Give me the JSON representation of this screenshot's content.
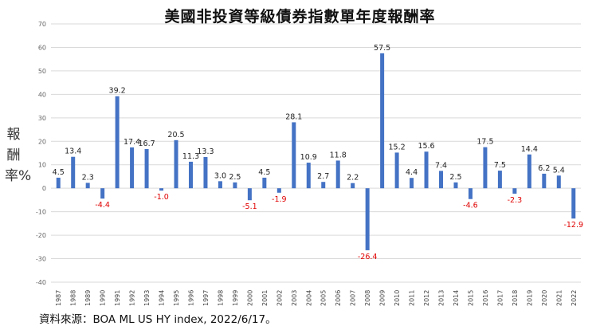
{
  "title": "美國非投資等級債券指數單年度報酬率",
  "ylabel": "報酬率%",
  "source": "資料來源：BOA ML US HY  index, 2022/6/17。",
  "colors": {
    "bar": "#4472C4",
    "positive_label": "#222222",
    "negative_label": "#e00000",
    "grid": "#d9d9d9"
  },
  "chart_data": {
    "type": "bar",
    "title": "美國非投資等級債券指數單年度報酬率",
    "xlabel": "",
    "ylabel": "報酬率%",
    "ylim": [
      -40,
      70
    ],
    "yticks": [
      70,
      60,
      50,
      40,
      30,
      20,
      10,
      0,
      -10,
      -20,
      -30,
      -40
    ],
    "grid": true,
    "categories": [
      "1987",
      "1988",
      "1989",
      "1990",
      "1991",
      "1992",
      "1993",
      "1994",
      "1995",
      "1996",
      "1997",
      "1998",
      "1999",
      "2000",
      "2001",
      "2002",
      "2003",
      "2004",
      "2005",
      "2006",
      "2007",
      "2008",
      "2009",
      "2010",
      "2011",
      "2012",
      "2013",
      "2014",
      "2015",
      "2016",
      "2017",
      "2018",
      "2019",
      "2020",
      "2021",
      "2022"
    ],
    "values": [
      4.5,
      13.4,
      2.3,
      -4.4,
      39.2,
      17.4,
      16.7,
      -1.0,
      20.5,
      11.3,
      13.3,
      3.0,
      2.5,
      -5.1,
      4.5,
      -1.9,
      28.1,
      10.9,
      2.7,
      11.8,
      2.2,
      -26.4,
      57.5,
      15.2,
      4.4,
      15.6,
      7.4,
      2.5,
      -4.6,
      17.5,
      7.5,
      -2.3,
      14.4,
      6.2,
      5.4,
      -12.9
    ],
    "data_labels": [
      "4.5",
      "13.4",
      "2.3",
      "-4.4",
      "39.2",
      "17.4",
      "16.7",
      "-1.0",
      "20.5",
      "11.3",
      "13.3",
      "3.0",
      "2.5",
      "-5.1",
      "4.5",
      "-1.9",
      "28.1",
      "10.9",
      "2.7",
      "11.8",
      "2.2",
      "-26.4",
      "57.5",
      "15.2",
      "4.4",
      "15.6",
      "7.4",
      "2.5",
      "-4.6",
      "17.5",
      "7.5",
      "-2.3",
      "14.4",
      "6.2",
      "5.4",
      "-12.9"
    ]
  }
}
